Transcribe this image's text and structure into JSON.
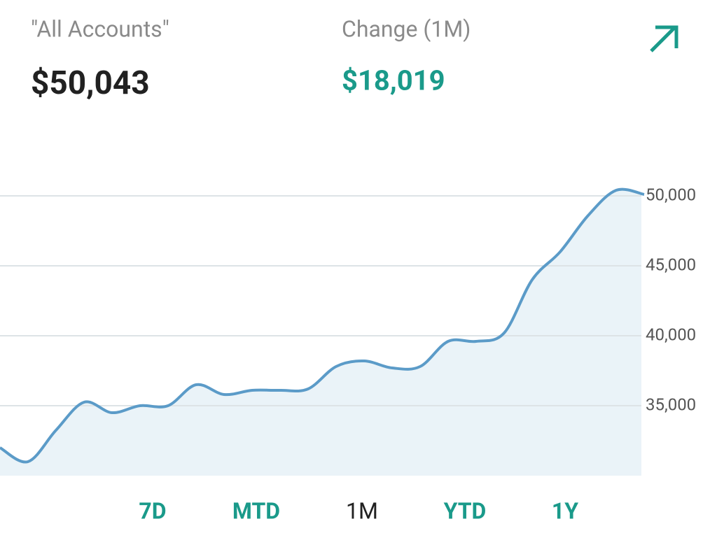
{
  "header": {
    "account_label": "\"All Accounts\"",
    "account_value": "$50,043",
    "change_label": "Change (1M)",
    "change_value": "$18,019"
  },
  "chart_data": {
    "type": "area",
    "color": "#5b9bc8",
    "fill": "#eaf3f8",
    "values": [
      32000,
      31000,
      33250,
      35250,
      34500,
      35000,
      35000,
      36500,
      35800,
      36100,
      36100,
      36200,
      37800,
      38200,
      37700,
      37800,
      39600,
      39600,
      40200,
      44000,
      46000,
      48600,
      50400,
      50100
    ],
    "ylim": [
      30000,
      51500
    ],
    "yticks": [
      {
        "value": 35000,
        "label": "35,000"
      },
      {
        "value": 40000,
        "label": "40,000"
      },
      {
        "value": 45000,
        "label": "45,000"
      },
      {
        "value": 50000,
        "label": "50,000"
      }
    ],
    "grid": true
  },
  "ranges": [
    "7D",
    "MTD",
    "1M",
    "YTD",
    "1Y"
  ],
  "selected_range": 2
}
